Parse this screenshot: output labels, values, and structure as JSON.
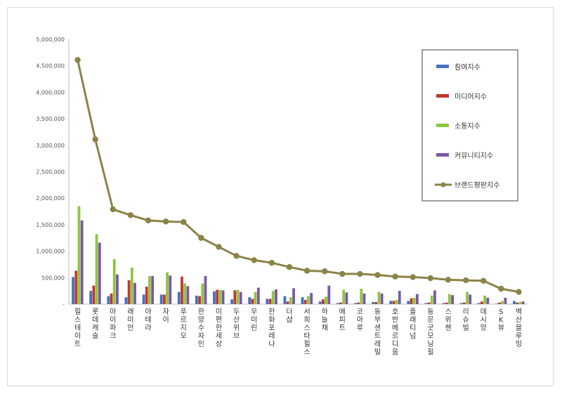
{
  "chart_data": {
    "type": "bar",
    "title": "",
    "xlabel": "",
    "ylabel": "",
    "ylim": [
      0,
      5000000
    ],
    "yticks": [
      0,
      500000,
      1000000,
      1500000,
      2000000,
      2500000,
      3000000,
      3500000,
      4000000,
      4500000,
      5000000
    ],
    "ytick_labels": [
      "-",
      "500,000",
      "1,000,000",
      "1,500,000",
      "2,000,000",
      "2,500,000",
      "3,000,000",
      "3,500,000",
      "4,000,000",
      "4,500,000",
      "5,000,000"
    ],
    "grid": false,
    "legend": "right",
    "categories": [
      "힐스테이트",
      "롯데캐슬",
      "아이파크",
      "래미안",
      "아테라",
      "자이",
      "푸르지오",
      "한양수자인",
      "이편한세상",
      "두산위브",
      "우미린",
      "한화포레나",
      "더샵",
      "서희스타힐스",
      "하늘채",
      "에피트",
      "코아루",
      "동부센트레빌",
      "호반베르디움",
      "플래티넘",
      "동문굿모닝힐",
      "스위첸",
      "리슈빌",
      "데시앙",
      "SK뷰",
      "벽산블루밍"
    ],
    "series": [
      {
        "name": "참여지수",
        "kind": "bar",
        "color": "#4472c4",
        "values": [
          510000,
          250000,
          150000,
          130000,
          180000,
          180000,
          230000,
          160000,
          240000,
          90000,
          130000,
          100000,
          150000,
          130000,
          50000,
          20000,
          20000,
          40000,
          60000,
          60000,
          20000,
          20000,
          20000,
          20000,
          10000,
          60000
        ]
      },
      {
        "name": "미디어지수",
        "kind": "bar",
        "color": "#c0392b",
        "values": [
          630000,
          350000,
          200000,
          450000,
          330000,
          180000,
          520000,
          150000,
          270000,
          260000,
          100000,
          100000,
          50000,
          80000,
          90000,
          30000,
          30000,
          40000,
          60000,
          110000,
          30000,
          30000,
          30000,
          50000,
          30000,
          30000
        ]
      },
      {
        "name": "소통지수",
        "kind": "bar",
        "color": "#8ec63f",
        "values": [
          1850000,
          1320000,
          850000,
          690000,
          530000,
          600000,
          390000,
          390000,
          270000,
          270000,
          230000,
          250000,
          130000,
          150000,
          140000,
          270000,
          290000,
          230000,
          80000,
          120000,
          160000,
          190000,
          230000,
          160000,
          60000,
          40000
        ]
      },
      {
        "name": "커뮤니티지수",
        "kind": "bar",
        "color": "#7b58a6",
        "values": [
          1580000,
          1160000,
          560000,
          400000,
          530000,
          540000,
          340000,
          530000,
          260000,
          230000,
          310000,
          280000,
          300000,
          210000,
          350000,
          220000,
          200000,
          200000,
          250000,
          190000,
          260000,
          170000,
          180000,
          120000,
          120000,
          50000
        ]
      },
      {
        "name": "브랜드평판지수",
        "kind": "line",
        "color": "#8b8348",
        "values": [
          4610000,
          3110000,
          1790000,
          1680000,
          1580000,
          1560000,
          1550000,
          1250000,
          1080000,
          910000,
          830000,
          780000,
          700000,
          630000,
          620000,
          570000,
          570000,
          550000,
          520000,
          510000,
          490000,
          460000,
          450000,
          440000,
          290000,
          230000
        ]
      }
    ]
  }
}
